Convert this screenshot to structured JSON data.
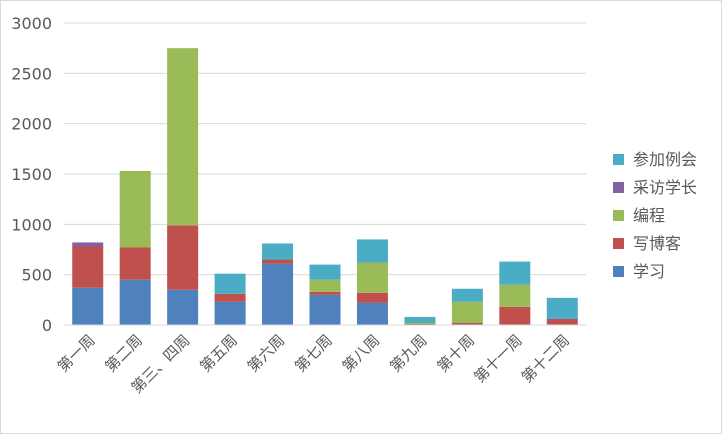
{
  "chart_data": {
    "type": "bar",
    "stacked": true,
    "categories": [
      "第一周",
      "第二周",
      "第三、四周",
      "第五周",
      "第六周",
      "第七周",
      "第八周",
      "第九周",
      "第十周",
      "第十一周",
      "第十二周"
    ],
    "series": [
      {
        "name": "学习",
        "color": "#4f81bd",
        "values": [
          370,
          450,
          350,
          230,
          610,
          300,
          220,
          0,
          0,
          0,
          0
        ]
      },
      {
        "name": "写博客",
        "color": "#c0504d",
        "values": [
          410,
          320,
          640,
          80,
          40,
          30,
          100,
          10,
          20,
          180,
          60
        ]
      },
      {
        "name": "编程",
        "color": "#9bbb59",
        "values": [
          0,
          760,
          1760,
          0,
          0,
          120,
          300,
          10,
          210,
          220,
          0
        ]
      },
      {
        "name": "采访学长",
        "color": "#8064a2",
        "values": [
          40,
          0,
          0,
          0,
          0,
          0,
          0,
          0,
          0,
          0,
          0
        ]
      },
      {
        "name": "参加例会",
        "color": "#4bacc6",
        "values": [
          0,
          0,
          0,
          200,
          160,
          150,
          230,
          60,
          130,
          230,
          210
        ]
      }
    ],
    "yticks": [
      "0",
      "500",
      "1000",
      "1500",
      "2000",
      "2500",
      "3000"
    ],
    "ylim": [
      0,
      3000
    ],
    "grid": true,
    "legend_position": "right",
    "title": "",
    "xlabel": "",
    "ylabel": ""
  }
}
